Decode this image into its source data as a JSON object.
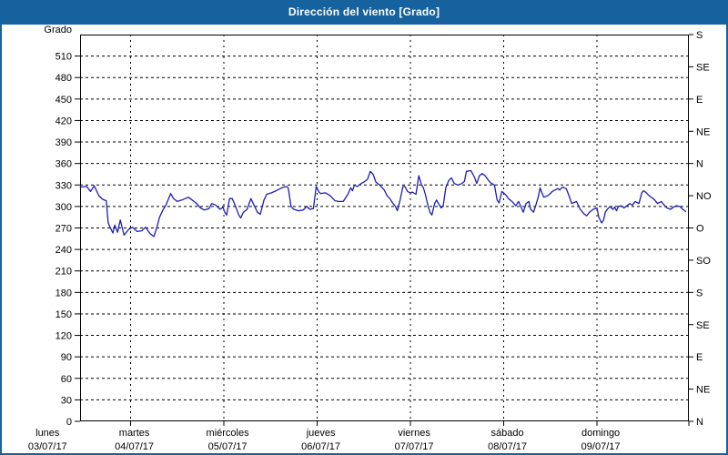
{
  "window": {
    "title": "Dirección del viento [Grado]"
  },
  "colors": {
    "frame": "#16629e",
    "title_bg": "#16629e",
    "title_text": "#ffffff",
    "line": "#1d1db5",
    "grid": "#000000",
    "plot_bg": "#ffffff",
    "text": "#000000"
  },
  "chart_data": {
    "type": "line",
    "title": "Dirección del viento [Grado]",
    "ylabel": "Grado",
    "grid": true,
    "legend": false,
    "y_left": {
      "label": "Grado",
      "min": 0,
      "max": 540,
      "tick_step": 30,
      "ticks": [
        0,
        30,
        60,
        90,
        120,
        150,
        180,
        210,
        240,
        270,
        300,
        330,
        360,
        390,
        420,
        450,
        480,
        510
      ]
    },
    "y_right": {
      "tick_step": 45,
      "labels_bottom_to_top": [
        "N",
        "NE",
        "E",
        "SE",
        "S",
        "SO",
        "O",
        "NO",
        "N",
        "NE",
        "E",
        "SE",
        "S"
      ]
    },
    "x": {
      "unit": "days since lunes 03/07/17 00:00",
      "start_day": 0.46,
      "end_day": 6.99,
      "gridline_days": [
        1,
        2,
        3,
        4,
        5,
        6
      ],
      "day_labels": [
        {
          "name": "lunes",
          "date": "03/07/17",
          "day": 0.11
        },
        {
          "name": "martes",
          "date": "04/07/17",
          "day": 1.04
        },
        {
          "name": "miércoles",
          "date": "05/07/17",
          "day": 2.04
        },
        {
          "name": "jueves",
          "date": "06/07/17",
          "day": 3.04
        },
        {
          "name": "viernes",
          "date": "07/07/17",
          "day": 4.04
        },
        {
          "name": "sábado",
          "date": "08/07/17",
          "day": 5.04
        },
        {
          "name": "domingo",
          "date": "09/07/17",
          "day": 6.04
        }
      ]
    },
    "series": [
      {
        "name": "Dirección del viento",
        "color": "#1d1db5",
        "points": [
          [
            0.46,
            327
          ],
          [
            0.53,
            328
          ],
          [
            0.57,
            321
          ],
          [
            0.61,
            329
          ],
          [
            0.66,
            315
          ],
          [
            0.7,
            310
          ],
          [
            0.74,
            308
          ],
          [
            0.76,
            277
          ],
          [
            0.78,
            271
          ],
          [
            0.81,
            263
          ],
          [
            0.83,
            274
          ],
          [
            0.86,
            264
          ],
          [
            0.89,
            281
          ],
          [
            0.93,
            260
          ],
          [
            0.98,
            268
          ],
          [
            1.02,
            271
          ],
          [
            1.07,
            265
          ],
          [
            1.12,
            266
          ],
          [
            1.16,
            271
          ],
          [
            1.21,
            262
          ],
          [
            1.25,
            258
          ],
          [
            1.28,
            270
          ],
          [
            1.31,
            285
          ],
          [
            1.35,
            296
          ],
          [
            1.38,
            302
          ],
          [
            1.43,
            318
          ],
          [
            1.46,
            311
          ],
          [
            1.5,
            307
          ],
          [
            1.55,
            309
          ],
          [
            1.62,
            313
          ],
          [
            1.7,
            305
          ],
          [
            1.75,
            298
          ],
          [
            1.79,
            295
          ],
          [
            1.84,
            297
          ],
          [
            1.87,
            304
          ],
          [
            1.91,
            302
          ],
          [
            1.96,
            296
          ],
          [
            1.99,
            299
          ],
          [
            2.01,
            292
          ],
          [
            2.03,
            288
          ],
          [
            2.06,
            311
          ],
          [
            2.09,
            311
          ],
          [
            2.12,
            302
          ],
          [
            2.16,
            288
          ],
          [
            2.18,
            284
          ],
          [
            2.21,
            292
          ],
          [
            2.25,
            296
          ],
          [
            2.29,
            311
          ],
          [
            2.33,
            300
          ],
          [
            2.36,
            292
          ],
          [
            2.39,
            289
          ],
          [
            2.43,
            309
          ],
          [
            2.46,
            317
          ],
          [
            2.51,
            319
          ],
          [
            2.56,
            322
          ],
          [
            2.62,
            326
          ],
          [
            2.67,
            328
          ],
          [
            2.69,
            326
          ],
          [
            2.72,
            300
          ],
          [
            2.75,
            296
          ],
          [
            2.8,
            294
          ],
          [
            2.85,
            295
          ],
          [
            2.89,
            300
          ],
          [
            2.92,
            296
          ],
          [
            2.96,
            297
          ],
          [
            2.99,
            328
          ],
          [
            3.02,
            320
          ],
          [
            3.04,
            318
          ],
          [
            3.09,
            319
          ],
          [
            3.14,
            315
          ],
          [
            3.19,
            308
          ],
          [
            3.23,
            307
          ],
          [
            3.28,
            307
          ],
          [
            3.33,
            317
          ],
          [
            3.36,
            326
          ],
          [
            3.38,
            322
          ],
          [
            3.4,
            330
          ],
          [
            3.43,
            328
          ],
          [
            3.47,
            332
          ],
          [
            3.5,
            334
          ],
          [
            3.54,
            338
          ],
          [
            3.57,
            349
          ],
          [
            3.6,
            345
          ],
          [
            3.63,
            334
          ],
          [
            3.67,
            330
          ],
          [
            3.72,
            323
          ],
          [
            3.75,
            315
          ],
          [
            3.78,
            311
          ],
          [
            3.81,
            305
          ],
          [
            3.84,
            300
          ],
          [
            3.86,
            294
          ],
          [
            3.89,
            309
          ],
          [
            3.92,
            328
          ],
          [
            3.94,
            328
          ],
          [
            3.97,
            321
          ],
          [
            4.0,
            319
          ],
          [
            4.02,
            320
          ],
          [
            4.06,
            317
          ],
          [
            4.09,
            343
          ],
          [
            4.12,
            330
          ],
          [
            4.14,
            326
          ],
          [
            4.16,
            317
          ],
          [
            4.19,
            300
          ],
          [
            4.21,
            292
          ],
          [
            4.23,
            288
          ],
          [
            4.26,
            304
          ],
          [
            4.28,
            309
          ],
          [
            4.31,
            302
          ],
          [
            4.33,
            298
          ],
          [
            4.35,
            300
          ],
          [
            4.38,
            326
          ],
          [
            4.41,
            336
          ],
          [
            4.44,
            340
          ],
          [
            4.47,
            332
          ],
          [
            4.51,
            330
          ],
          [
            4.55,
            332
          ],
          [
            4.58,
            335
          ],
          [
            4.6,
            349
          ],
          [
            4.65,
            350
          ],
          [
            4.69,
            340
          ],
          [
            4.71,
            332
          ],
          [
            4.74,
            343
          ],
          [
            4.77,
            346
          ],
          [
            4.8,
            343
          ],
          [
            4.84,
            336
          ],
          [
            4.86,
            333
          ],
          [
            4.9,
            330
          ],
          [
            4.93,
            309
          ],
          [
            4.95,
            305
          ],
          [
            4.98,
            321
          ],
          [
            5.0,
            319
          ],
          [
            5.03,
            315
          ],
          [
            5.05,
            311
          ],
          [
            5.08,
            308
          ],
          [
            5.11,
            304
          ],
          [
            5.13,
            301
          ],
          [
            5.16,
            307
          ],
          [
            5.19,
            298
          ],
          [
            5.21,
            292
          ],
          [
            5.24,
            304
          ],
          [
            5.27,
            307
          ],
          [
            5.29,
            296
          ],
          [
            5.32,
            292
          ],
          [
            5.34,
            300
          ],
          [
            5.37,
            313
          ],
          [
            5.39,
            326
          ],
          [
            5.41,
            319
          ],
          [
            5.43,
            313
          ],
          [
            5.47,
            315
          ],
          [
            5.5,
            318
          ],
          [
            5.52,
            321
          ],
          [
            5.55,
            323
          ],
          [
            5.58,
            325
          ],
          [
            5.6,
            323
          ],
          [
            5.63,
            327
          ],
          [
            5.67,
            325
          ],
          [
            5.7,
            315
          ],
          [
            5.73,
            304
          ],
          [
            5.78,
            307
          ],
          [
            5.82,
            296
          ],
          [
            5.86,
            290
          ],
          [
            5.89,
            287
          ],
          [
            5.92,
            292
          ],
          [
            5.96,
            296
          ],
          [
            6.0,
            298
          ],
          [
            6.02,
            285
          ],
          [
            6.05,
            277
          ],
          [
            6.07,
            281
          ],
          [
            6.09,
            292
          ],
          [
            6.11,
            296
          ],
          [
            6.14,
            300
          ],
          [
            6.17,
            296
          ],
          [
            6.19,
            299
          ],
          [
            6.21,
            294
          ],
          [
            6.23,
            300
          ],
          [
            6.26,
            301
          ],
          [
            6.29,
            298
          ],
          [
            6.31,
            300
          ],
          [
            6.35,
            304
          ],
          [
            6.38,
            302
          ],
          [
            6.41,
            307
          ],
          [
            6.45,
            304
          ],
          [
            6.48,
            319
          ],
          [
            6.5,
            322
          ],
          [
            6.53,
            319
          ],
          [
            6.56,
            315
          ],
          [
            6.59,
            312
          ],
          [
            6.62,
            309
          ],
          [
            6.65,
            304
          ],
          [
            6.69,
            307
          ],
          [
            6.72,
            302
          ],
          [
            6.75,
            298
          ],
          [
            6.79,
            296
          ],
          [
            6.82,
            299
          ],
          [
            6.85,
            301
          ],
          [
            6.89,
            300
          ],
          [
            6.92,
            296
          ],
          [
            6.95,
            293
          ]
        ]
      }
    ]
  }
}
